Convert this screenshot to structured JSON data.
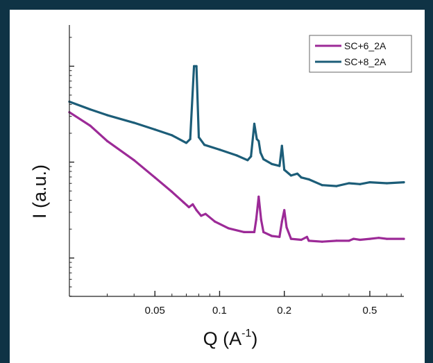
{
  "chart_data": {
    "type": "line",
    "xlabel": "Q (A",
    "xlabel_sup": "-1",
    "xlabel_end": ")",
    "ylabel": "I (a.u.)",
    "x_scale": "log",
    "y_scale": "log",
    "xlim": [
      0.02,
      0.72
    ],
    "ylim_log_decades": [
      0.0,
      2.83
    ],
    "x_ticks": [
      {
        "value": 0.05,
        "label": "0.05"
      },
      {
        "value": 0.1,
        "label": "0.1"
      },
      {
        "value": 0.2,
        "label": "0.2"
      },
      {
        "value": 0.5,
        "label": "0.5"
      }
    ],
    "y_major_decades": [
      0.4,
      1.4,
      2.4
    ],
    "legend_position": "top-right",
    "grid": false,
    "series": [
      {
        "name": "SC+6_2A",
        "color": "#9c2a97",
        "points": [
          [
            0.02,
            1.92
          ],
          [
            0.025,
            1.78
          ],
          [
            0.03,
            1.62
          ],
          [
            0.04,
            1.42
          ],
          [
            0.05,
            1.24
          ],
          [
            0.06,
            1.09
          ],
          [
            0.068,
            0.98
          ],
          [
            0.072,
            0.93
          ],
          [
            0.075,
            0.96
          ],
          [
            0.078,
            0.9
          ],
          [
            0.082,
            0.84
          ],
          [
            0.086,
            0.86
          ],
          [
            0.095,
            0.78
          ],
          [
            0.11,
            0.71
          ],
          [
            0.13,
            0.67
          ],
          [
            0.145,
            0.67
          ],
          [
            0.148,
            0.8
          ],
          [
            0.152,
            1.04
          ],
          [
            0.156,
            0.8
          ],
          [
            0.16,
            0.67
          ],
          [
            0.175,
            0.63
          ],
          [
            0.19,
            0.62
          ],
          [
            0.195,
            0.78
          ],
          [
            0.2,
            0.9
          ],
          [
            0.205,
            0.72
          ],
          [
            0.215,
            0.6
          ],
          [
            0.24,
            0.59
          ],
          [
            0.255,
            0.62
          ],
          [
            0.26,
            0.58
          ],
          [
            0.3,
            0.57
          ],
          [
            0.35,
            0.58
          ],
          [
            0.4,
            0.58
          ],
          [
            0.42,
            0.6
          ],
          [
            0.45,
            0.59
          ],
          [
            0.5,
            0.6
          ],
          [
            0.55,
            0.61
          ],
          [
            0.6,
            0.6
          ],
          [
            0.72,
            0.6
          ]
        ]
      },
      {
        "name": "SC+8_2A",
        "color": "#1c5d78",
        "points": [
          [
            0.02,
            2.03
          ],
          [
            0.025,
            1.95
          ],
          [
            0.03,
            1.89
          ],
          [
            0.04,
            1.81
          ],
          [
            0.05,
            1.74
          ],
          [
            0.06,
            1.68
          ],
          [
            0.07,
            1.6
          ],
          [
            0.073,
            1.64
          ],
          [
            0.076,
            2.4
          ],
          [
            0.078,
            2.4
          ],
          [
            0.08,
            1.66
          ],
          [
            0.085,
            1.58
          ],
          [
            0.1,
            1.53
          ],
          [
            0.12,
            1.47
          ],
          [
            0.135,
            1.42
          ],
          [
            0.14,
            1.46
          ],
          [
            0.145,
            1.8
          ],
          [
            0.149,
            1.64
          ],
          [
            0.152,
            1.62
          ],
          [
            0.155,
            1.5
          ],
          [
            0.16,
            1.43
          ],
          [
            0.175,
            1.38
          ],
          [
            0.19,
            1.36
          ],
          [
            0.195,
            1.57
          ],
          [
            0.2,
            1.32
          ],
          [
            0.215,
            1.26
          ],
          [
            0.23,
            1.28
          ],
          [
            0.24,
            1.24
          ],
          [
            0.26,
            1.22
          ],
          [
            0.3,
            1.16
          ],
          [
            0.35,
            1.15
          ],
          [
            0.4,
            1.18
          ],
          [
            0.45,
            1.17
          ],
          [
            0.5,
            1.19
          ],
          [
            0.6,
            1.18
          ],
          [
            0.72,
            1.19
          ]
        ]
      }
    ]
  }
}
